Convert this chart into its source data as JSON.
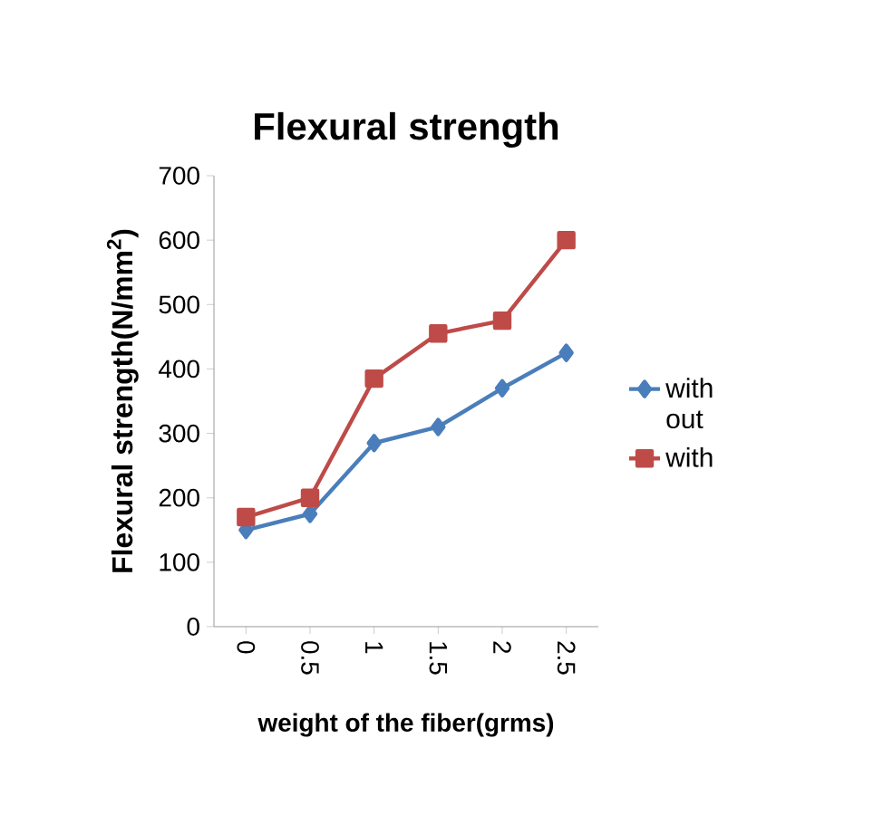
{
  "chart_data": {
    "type": "line",
    "title": "Flexural strength",
    "xlabel": "weight of the fiber(grms)",
    "ylabel": "Flexural strength(N/mm$^{2}$)",
    "categories": [
      "0",
      "0.5",
      "1",
      "1.5",
      "2",
      "2.5"
    ],
    "series": [
      {
        "name": "with out",
        "color": "#4a7ebb",
        "marker": "diamond",
        "values": [
          150,
          175,
          285,
          310,
          370,
          425
        ]
      },
      {
        "name": "with",
        "color": "#be4b48",
        "marker": "square",
        "values": [
          170,
          200,
          385,
          455,
          475,
          600
        ]
      }
    ],
    "ylim": [
      0,
      700
    ],
    "yticks": [
      0,
      100,
      200,
      300,
      400,
      500,
      600,
      700
    ],
    "legend": "right",
    "grid": false,
    "line_style": "solid"
  }
}
